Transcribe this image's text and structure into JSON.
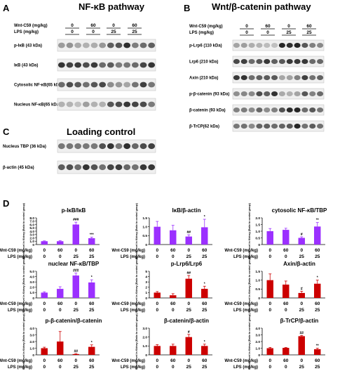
{
  "panels": {
    "A": {
      "letter": "A",
      "title": "NF-κB pathway",
      "treatment_rows": [
        "Wnt-C59 (mg/kg)",
        "LPS (mg/kg)"
      ],
      "wnt_values": [
        "0",
        "60",
        "0",
        "60"
      ],
      "lps_values": [
        "0",
        "0",
        "25",
        "25"
      ],
      "blots": [
        "p-IκB (43 kDa)",
        "IκB (43 kDa)",
        "Cytosolic NF-κB(65 kDa)",
        "Nucleus NF-κB(65 kDa)"
      ]
    },
    "B": {
      "letter": "B",
      "title": "Wnt/β-catenin pathway",
      "treatment_rows": [
        "Wnt-C59 (mg/kg)",
        "LPS (mg/kg)"
      ],
      "wnt_values": [
        "0",
        "60",
        "0",
        "60"
      ],
      "lps_values": [
        "0",
        "0",
        "25",
        "25"
      ],
      "blots": [
        "p-Lrp6 (110 kDa)",
        "Lrp6 (210 kDa)",
        "Axin (210 kDa)",
        "p-β-catenin (93 kDa)",
        "β-catenin (93 kDa)",
        "β-TrCP(62 kDa)"
      ]
    },
    "C": {
      "letter": "C",
      "title": "Loading control",
      "blots": [
        "Nucleus  TBP (36 kDa)",
        "β-actin (45 kDa)"
      ]
    },
    "D": {
      "letter": "D",
      "ylabel": "Protein level in Kidney (Ratio to control group)",
      "x_row_labels": [
        "Wnt-C59 (mg/kg)",
        "LPS (mg/kg)"
      ],
      "wnt_values": [
        "0",
        "60",
        "0",
        "60"
      ],
      "lps_values": [
        "0",
        "0",
        "25",
        "25"
      ]
    }
  },
  "colors": {
    "purple": "#9b30ff",
    "red": "#cc0000",
    "blot_band": "#1a1a1a"
  },
  "chart_data": [
    {
      "type": "bar",
      "title": "p-IκB/IκB",
      "color": "purple",
      "ylim": [
        0,
        8
      ],
      "yticks": [
        "0",
        "1.0",
        "2.0",
        "3.0",
        "4.0",
        "5.0",
        "6.0",
        "7.0",
        "8.0"
      ],
      "values": [
        1.0,
        1.0,
        6.0,
        1.9
      ],
      "errors": [
        0.1,
        0.15,
        0.7,
        0.3
      ],
      "marks": [
        "",
        "",
        "###",
        "***"
      ]
    },
    {
      "type": "bar",
      "title": "IκB/β-actin",
      "color": "purple",
      "ylim": [
        0,
        1.5
      ],
      "yticks": [
        "0",
        "0.5",
        "1.0",
        "1.5"
      ],
      "values": [
        1.0,
        0.8,
        0.45,
        0.97
      ],
      "errors": [
        0.3,
        0.28,
        0.1,
        0.45
      ],
      "marks": [
        "",
        "",
        "##",
        "*"
      ]
    },
    {
      "type": "bar",
      "title": "cytosolic NF-κB/TBP",
      "color": "purple",
      "ylim": [
        0,
        2.0
      ],
      "yticks": [
        "0",
        "0.5",
        "1.0",
        "1.5",
        "2.0"
      ],
      "values": [
        1.0,
        1.1,
        0.5,
        1.35
      ],
      "errors": [
        0.2,
        0.12,
        0.08,
        0.3
      ],
      "marks": [
        "",
        "",
        "#",
        "**"
      ]
    },
    {
      "type": "bar",
      "title": "nuclear NF-κB/TBP",
      "color": "purple",
      "ylim": [
        0,
        5.0
      ],
      "yticks": [
        "0",
        "1.0",
        "2.0",
        "3.0",
        "4.0",
        "5.0"
      ],
      "values": [
        1.0,
        1.7,
        4.2,
        2.9
      ],
      "errors": [
        0.15,
        0.4,
        0.45,
        0.5
      ],
      "marks": [
        "",
        "",
        "###",
        "*"
      ]
    },
    {
      "type": "bar",
      "title": "p-Lrp6/Lrp6",
      "color": "red",
      "ylim": [
        0,
        5
      ],
      "yticks": [
        "0",
        "1",
        "2",
        "3",
        "4",
        "5"
      ],
      "values": [
        1.0,
        0.5,
        3.6,
        1.7
      ],
      "errors": [
        0.2,
        0.3,
        0.6,
        0.5
      ],
      "marks": [
        "",
        "",
        "##",
        "*"
      ]
    },
    {
      "type": "bar",
      "title": "Axin/β-actin",
      "color": "red",
      "ylim": [
        0,
        1.5
      ],
      "yticks": [
        "0",
        "0.5",
        "1.0",
        "1.5"
      ],
      "values": [
        1.0,
        0.75,
        0.28,
        0.8
      ],
      "errors": [
        0.35,
        0.2,
        0.1,
        0.2
      ],
      "marks": [
        "",
        "",
        "#",
        "*"
      ]
    },
    {
      "type": "bar",
      "title": "p-β-catenin/β-catenin",
      "color": "red",
      "ylim": [
        0,
        4.0
      ],
      "yticks": [
        "0",
        "1.0",
        "2.0",
        "3.0",
        "4.0"
      ],
      "values": [
        1.0,
        2.0,
        0.12,
        1.2
      ],
      "errors": [
        0.15,
        1.5,
        0.05,
        0.3
      ],
      "marks": [
        "",
        "",
        "##",
        "*"
      ]
    },
    {
      "type": "bar",
      "title": "β-catenin/β-actin",
      "color": "red",
      "ylim": [
        0,
        3.0
      ],
      "yticks": [
        "0",
        "1.0",
        "2.0",
        "3.0"
      ],
      "values": [
        1.0,
        1.0,
        2.0,
        1.0
      ],
      "errors": [
        0.15,
        0.2,
        0.3,
        0.2
      ],
      "marks": [
        "",
        "",
        "#",
        "*"
      ]
    },
    {
      "type": "bar",
      "title": "β-TrCP/β-actin",
      "color": "red",
      "ylim": [
        0,
        4.0
      ],
      "yticks": [
        "0",
        "1.0",
        "2.0",
        "3.0",
        "4.0"
      ],
      "values": [
        1.0,
        1.05,
        2.8,
        0.85
      ],
      "errors": [
        0.12,
        0.05,
        0.1,
        0.15
      ],
      "marks": [
        "",
        "",
        "##",
        "**"
      ]
    }
  ]
}
